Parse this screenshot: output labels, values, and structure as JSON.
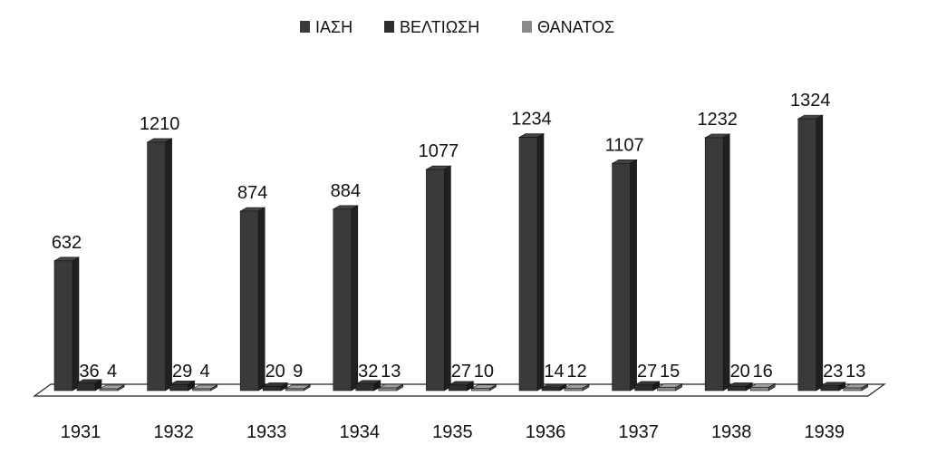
{
  "chart_data": {
    "type": "bar",
    "title": "",
    "xlabel": "",
    "ylabel": "",
    "categories": [
      "1931",
      "1932",
      "1933",
      "1934",
      "1935",
      "1936",
      "1937",
      "1938",
      "1939"
    ],
    "series": [
      {
        "name": "ΙΑΣΗ",
        "color": "#3a3a3a",
        "values": [
          632,
          1210,
          874,
          884,
          1077,
          1234,
          1107,
          1232,
          1324
        ],
        "labels": [
          "632",
          "1210",
          "874",
          "884",
          "1077",
          "1234",
          "1107",
          "1232",
          "1324"
        ]
      },
      {
        "name": "ΒΕΛΤΙΩΣΗ",
        "color": "#2e2e2e",
        "values": [
          36,
          29,
          20,
          32,
          27,
          14,
          27,
          20,
          23
        ],
        "labels": [
          "36",
          "29",
          "20",
          "32",
          "27",
          "14",
          "27",
          "20",
          "23"
        ]
      },
      {
        "name": "ΘΑΝΑΤΟΣ",
        "color": "#8a8a8a",
        "values": [
          4,
          4,
          9,
          13,
          10,
          12,
          15,
          16,
          13
        ],
        "labels": [
          "4",
          "4",
          "9",
          "13",
          "10",
          "12",
          "15",
          "16",
          "13"
        ]
      }
    ],
    "ylim": [
      0,
      1324
    ],
    "grid": false,
    "legend_position": "top-center",
    "style": "3d-column"
  }
}
